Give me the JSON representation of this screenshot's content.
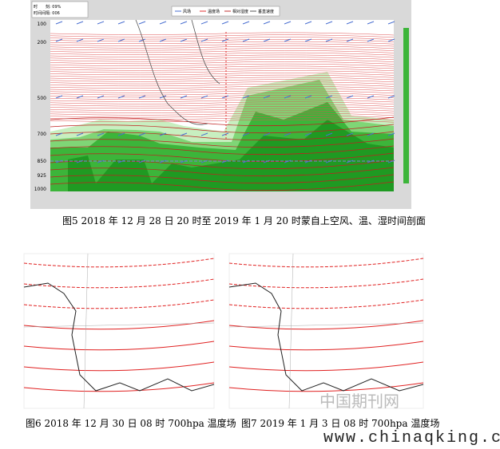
{
  "figure5": {
    "info": [
      "时　　刻: 09%",
      "时间间隔: 006"
    ],
    "legend": [
      "风场",
      "温度场",
      "相对湿度",
      "垂直速度"
    ],
    "levels": [
      "100",
      "200",
      "500",
      "700",
      "850",
      "925",
      "1000"
    ],
    "caption": "图5 2018 年 12 月 28 日 20 时至 2019 年 1 月 20 时蒙自上空风、温、湿时间剖面"
  },
  "figure6": {
    "caption": "图6 2018 年 12 月 30 日 08 时 700hpa 温度场"
  },
  "figure7": {
    "caption": "图7 2019 年 1 月 3 日 08 时 700hpa 温度场"
  },
  "logo": "中国期刊网",
  "watermark": "www.chinaqking.com"
}
